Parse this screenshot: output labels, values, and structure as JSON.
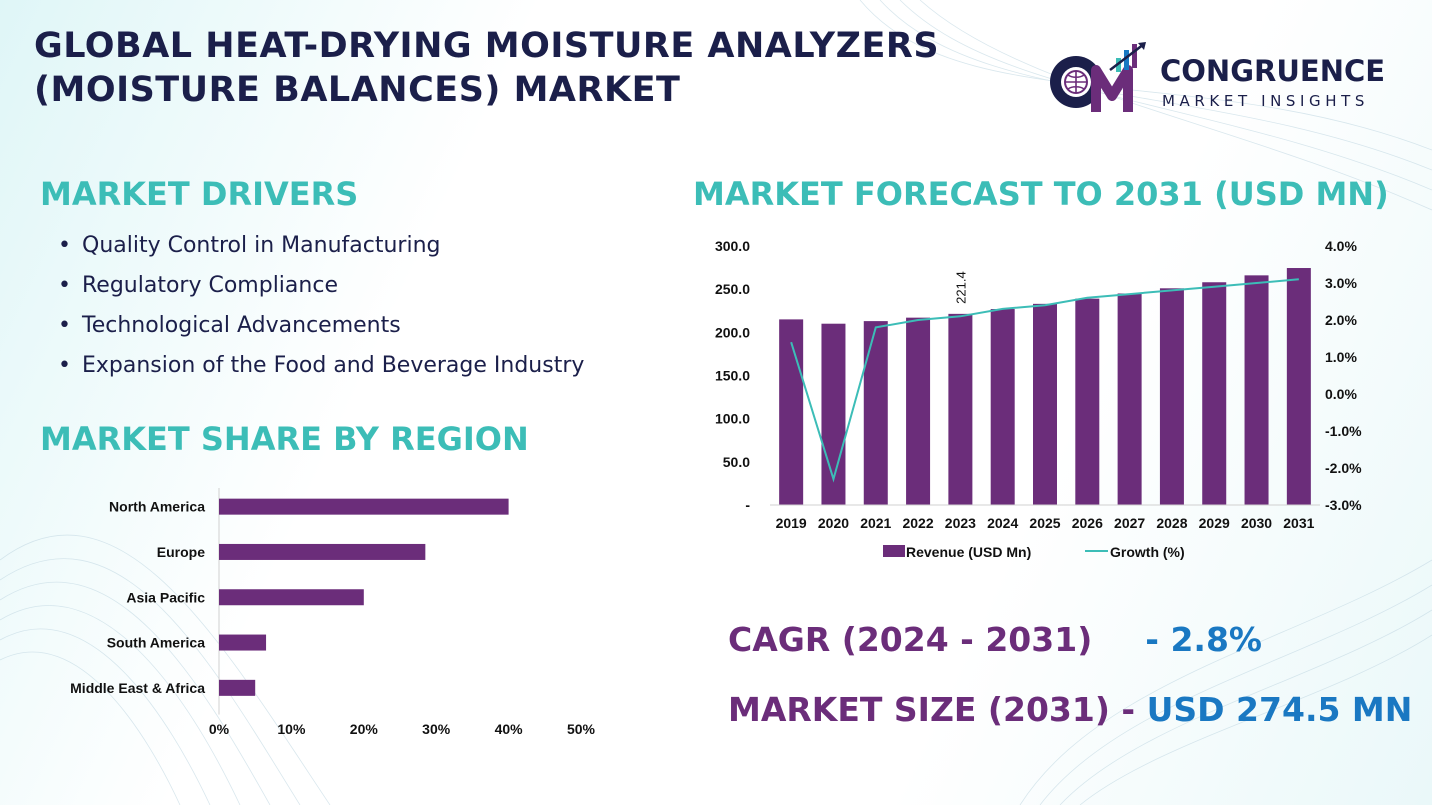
{
  "title": {
    "line1": "GLOBAL HEAT-DRYING MOISTURE ANALYZERS",
    "line2": "(MOISTURE BALANCES) MARKET"
  },
  "logo": {
    "name": "CONGRUENCE",
    "subtitle": "MARKET INSIGHTS"
  },
  "drivers": {
    "heading": "MARKET DRIVERS",
    "bullet": "•",
    "items": [
      "Quality Control in Manufacturing",
      "Regulatory Compliance",
      "Technological Advancements",
      "Expansion of the Food and Beverage Industry"
    ]
  },
  "region": {
    "heading": "MARKET SHARE BY REGION"
  },
  "forecast": {
    "heading": "MARKET FORECAST TO 2031 (USD MN)"
  },
  "stats": {
    "cagr_label": "CAGR (2024 - 2031)",
    "cagr_sep": "- ",
    "cagr_value": "2.8%",
    "size_label": "MARKET SIZE (2031)",
    "size_sep": " - ",
    "size_value": "USD 274.5 MN"
  },
  "colors": {
    "bar": "#6b2d7a",
    "line": "#3cbdb7",
    "heading": "#3cbdb7",
    "title": "#1b1f4a",
    "value": "#1a78c2"
  },
  "chart_data": [
    {
      "type": "bar",
      "orientation": "horizontal",
      "categories": [
        "North America",
        "Europe",
        "Asia Pacific",
        "South America",
        "Middle East & Africa"
      ],
      "values": [
        40,
        28.5,
        20,
        6.5,
        5
      ],
      "xlim": [
        0,
        50
      ],
      "x_ticks": [
        "0%",
        "10%",
        "20%",
        "30%",
        "40%",
        "50%"
      ],
      "grid": false
    },
    {
      "type": "bar",
      "categories": [
        "2019",
        "2020",
        "2021",
        "2022",
        "2023",
        "2024",
        "2025",
        "2026",
        "2027",
        "2028",
        "2029",
        "2030",
        "2031"
      ],
      "series": [
        {
          "name": "Revenue (USD Mn)",
          "type": "bar",
          "axis": "left",
          "values": [
            215.0,
            210.0,
            213.0,
            217.0,
            221.4,
            227.0,
            233.0,
            239.0,
            245.0,
            251.0,
            258.0,
            266.0,
            274.5
          ]
        },
        {
          "name": "Growth (%)",
          "type": "line",
          "axis": "right",
          "values": [
            1.4,
            -2.3,
            1.8,
            2.0,
            2.1,
            2.3,
            2.4,
            2.6,
            2.7,
            2.8,
            2.9,
            3.0,
            3.1
          ]
        }
      ],
      "ylim_left": [
        0,
        300
      ],
      "y_ticks_left": [
        "-",
        "50.0",
        "100.0",
        "150.0",
        "200.0",
        "250.0",
        "300.0"
      ],
      "ylim_right": [
        -3,
        4
      ],
      "y_ticks_right": [
        "-3.0%",
        "-2.0%",
        "-1.0%",
        "0.0%",
        "1.0%",
        "2.0%",
        "3.0%",
        "4.0%"
      ],
      "data_labels": [
        {
          "category": "2023",
          "text": "221.4"
        }
      ],
      "legend": "bottom",
      "grid": false
    }
  ]
}
